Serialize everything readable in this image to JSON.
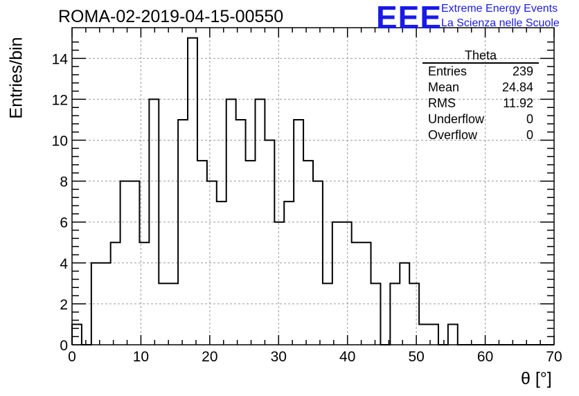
{
  "chart_data": {
    "type": "bar",
    "title": "ROMA-02-2019-04-15-00550",
    "xlabel": "θ [°]",
    "ylabel": "Entries/bin",
    "xlim": [
      0,
      70
    ],
    "ylim": [
      0,
      15.5
    ],
    "bin_width": 1.4,
    "x_ticks": [
      0,
      10,
      20,
      30,
      40,
      50,
      60,
      70
    ],
    "y_ticks": [
      0,
      2,
      4,
      6,
      8,
      10,
      12,
      14
    ],
    "grid": true,
    "values": [
      1,
      0,
      4,
      4,
      5,
      8,
      8,
      5,
      12,
      3,
      3,
      11,
      15,
      9,
      8,
      7,
      12,
      11,
      9,
      12,
      10,
      6,
      7,
      11,
      9,
      8,
      3,
      6,
      6,
      5,
      5,
      3,
      0,
      3,
      4,
      3,
      1,
      1,
      0,
      1,
      0,
      0,
      0,
      0,
      0,
      0,
      0,
      0,
      0,
      0
    ],
    "series": [
      {
        "name": "Theta"
      }
    ]
  },
  "stats_box": {
    "name": "Theta",
    "rows": [
      {
        "label": "Entries",
        "value": "239"
      },
      {
        "label": "Mean",
        "value": "24.84"
      },
      {
        "label": "RMS",
        "value": "11.92"
      },
      {
        "label": "Underflow",
        "value": "0"
      },
      {
        "label": "Overflow",
        "value": "0"
      }
    ]
  },
  "logo": {
    "text": "EEE",
    "line1": "Extreme Energy Events",
    "line2": "La Scienza nelle Scuole",
    "color": "#1a1ae6"
  }
}
